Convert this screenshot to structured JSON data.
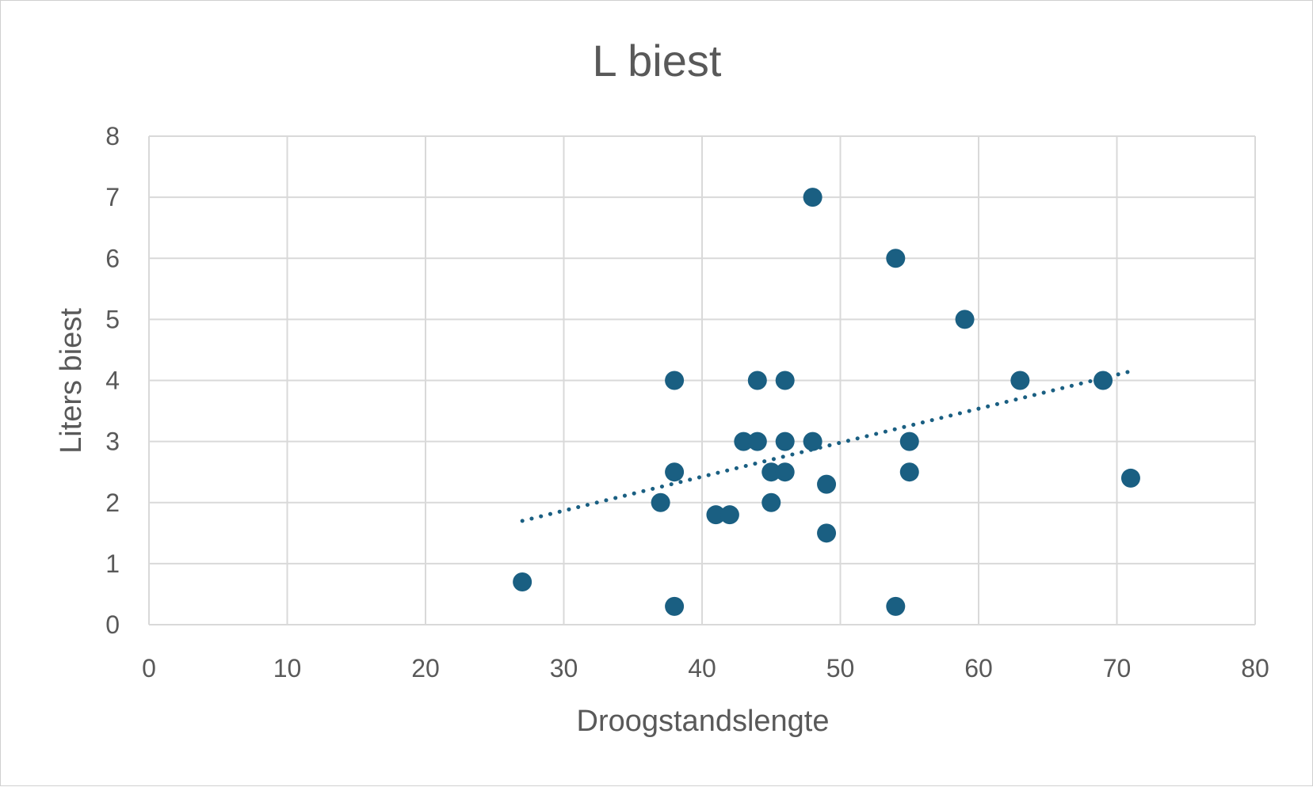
{
  "chart_data": {
    "type": "scatter",
    "title": "L biest",
    "xlabel": "Droogstandslengte",
    "ylabel": "Liters biest",
    "xlim": [
      0,
      80
    ],
    "ylim": [
      0,
      8
    ],
    "xticks": [
      "0",
      "10",
      "20",
      "30",
      "40",
      "50",
      "60",
      "70",
      "80"
    ],
    "yticks": [
      "0",
      "1",
      "2",
      "3",
      "4",
      "5",
      "6",
      "7",
      "8"
    ],
    "grid": true,
    "marker_color": "#1a5f82",
    "points": [
      {
        "x": 27,
        "y": 0.7
      },
      {
        "x": 37,
        "y": 2.0
      },
      {
        "x": 38,
        "y": 0.3
      },
      {
        "x": 38,
        "y": 2.5
      },
      {
        "x": 38,
        "y": 4.0
      },
      {
        "x": 41,
        "y": 1.8
      },
      {
        "x": 42,
        "y": 1.8
      },
      {
        "x": 43,
        "y": 3.0
      },
      {
        "x": 44,
        "y": 3.0
      },
      {
        "x": 44,
        "y": 4.0
      },
      {
        "x": 45,
        "y": 2.0
      },
      {
        "x": 45,
        "y": 2.5
      },
      {
        "x": 46,
        "y": 2.5
      },
      {
        "x": 46,
        "y": 3.0
      },
      {
        "x": 46,
        "y": 4.0
      },
      {
        "x": 48,
        "y": 3.0
      },
      {
        "x": 48,
        "y": 7.0
      },
      {
        "x": 49,
        "y": 1.5
      },
      {
        "x": 49,
        "y": 2.3
      },
      {
        "x": 54,
        "y": 0.3
      },
      {
        "x": 54,
        "y": 6.0
      },
      {
        "x": 55,
        "y": 2.5
      },
      {
        "x": 55,
        "y": 3.0
      },
      {
        "x": 59,
        "y": 5.0
      },
      {
        "x": 63,
        "y": 4.0
      },
      {
        "x": 69,
        "y": 4.0
      },
      {
        "x": 71,
        "y": 2.4
      }
    ],
    "trendline": {
      "style": "dotted",
      "x_start": 27,
      "y_start": 1.7,
      "x_end": 71,
      "y_end": 4.15
    }
  }
}
